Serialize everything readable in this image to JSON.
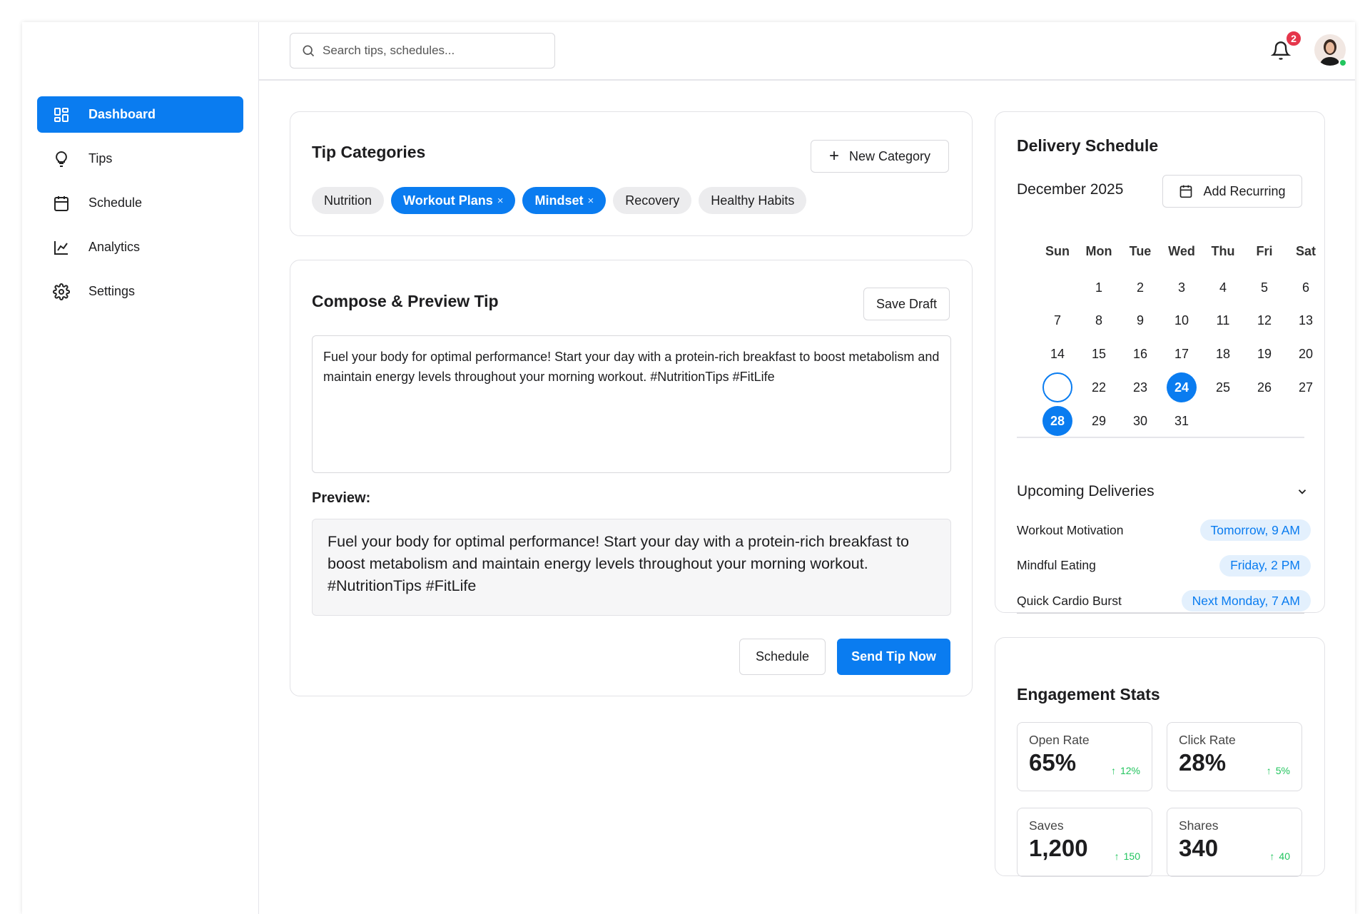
{
  "header": {
    "search_placeholder": "Search tips, schedules...",
    "notification_count": "2"
  },
  "sidebar": {
    "nav": [
      "Dashboard",
      "Tips",
      "Schedule",
      "Analytics",
      "Settings"
    ]
  },
  "tip_categories": {
    "title": "Tip Categories",
    "new_button": "New Category",
    "tags": [
      {
        "label": "Nutrition",
        "selected": false
      },
      {
        "label": "Workout Plans",
        "selected": true
      },
      {
        "label": "Mindset",
        "selected": true
      },
      {
        "label": "Recovery",
        "selected": false
      },
      {
        "label": "Healthy Habits",
        "selected": false
      }
    ]
  },
  "compose": {
    "title": "Compose & Preview Tip",
    "save_draft": "Save Draft",
    "text": "Fuel your body for optimal performance! Start your day with a protein-rich breakfast to boost metabolism and maintain energy levels throughout your morning workout. #NutritionTips #FitLife",
    "preview_label": "Preview:",
    "preview_text": "Fuel your body for optimal performance! Start your day with a protein-rich breakfast to boost metabolism and maintain energy levels throughout your morning workout. #NutritionTips #FitLife",
    "schedule_button": "Schedule",
    "send_button": "Send Tip Now"
  },
  "delivery": {
    "title": "Delivery Schedule",
    "month": "December 2025",
    "add_recurring": "Add Recurring",
    "weekdays": [
      "Sun",
      "Mon",
      "Tue",
      "Wed",
      "Thu",
      "Fri",
      "Sat"
    ],
    "weeks": [
      [
        null,
        1,
        2,
        3,
        4,
        5,
        6
      ],
      [
        7,
        8,
        9,
        10,
        11,
        12,
        13
      ],
      [
        14,
        15,
        16,
        17,
        18,
        19,
        20
      ],
      [
        {
          "day": null,
          "state": "outlined"
        },
        22,
        23,
        {
          "day": 24,
          "state": "selected"
        },
        25,
        26,
        27
      ],
      [
        {
          "day": 28,
          "state": "selected"
        },
        29,
        30,
        31
      ]
    ],
    "upcoming_title": "Upcoming Deliveries",
    "upcoming": [
      {
        "name": "Workout Motivation",
        "time": "Tomorrow, 9 AM"
      },
      {
        "name": "Mindful Eating",
        "time": "Friday, 2 PM"
      },
      {
        "name": "Quick Cardio Burst",
        "time": "Next Monday, 7 AM"
      }
    ]
  },
  "engagement": {
    "title": "Engagement Stats",
    "stats": [
      {
        "label": "Open Rate",
        "value": "65%",
        "change": "12%"
      },
      {
        "label": "Click Rate",
        "value": "28%",
        "change": "5%"
      },
      {
        "label": "Saves",
        "value": "1,200",
        "change": "150"
      },
      {
        "label": "Shares",
        "value": "340",
        "change": "40"
      }
    ]
  }
}
